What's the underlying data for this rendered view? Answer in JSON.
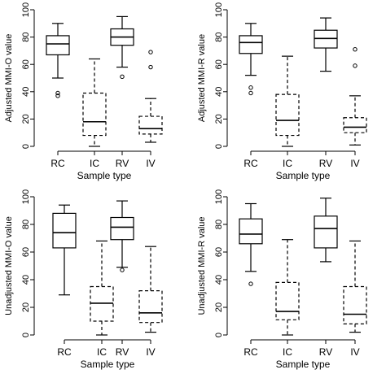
{
  "chart_data": [
    {
      "type": "box",
      "ylabel": "Adjusted MMI-O value",
      "xlabel": "Sample type",
      "ylim": [
        0,
        100
      ],
      "yticks": [
        0,
        20,
        40,
        60,
        80,
        100
      ],
      "categories": [
        "RC",
        "IC",
        "RV",
        "IV"
      ],
      "boxes": [
        {
          "category": "RC",
          "style": "solid",
          "whisker_low": 50,
          "q1": 67,
          "median": 75,
          "q3": 81,
          "whisker_high": 90,
          "outliers": [
            37,
            39
          ]
        },
        {
          "category": "IC",
          "style": "dashed",
          "whisker_low": 0,
          "q1": 8,
          "median": 18,
          "q3": 39,
          "whisker_high": 64,
          "outliers": []
        },
        {
          "category": "RV",
          "style": "solid",
          "whisker_low": 58,
          "q1": 74,
          "median": 80,
          "q3": 86,
          "whisker_high": 95,
          "outliers": [
            51
          ]
        },
        {
          "category": "IV",
          "style": "dashed",
          "whisker_low": 3,
          "q1": 9,
          "median": 13,
          "q3": 22,
          "whisker_high": 35,
          "outliers": [
            58,
            69
          ]
        }
      ]
    },
    {
      "type": "box",
      "ylabel": "Adjusted MMI-R value",
      "xlabel": "Sample type",
      "ylim": [
        0,
        100
      ],
      "yticks": [
        0,
        20,
        40,
        60,
        80,
        100
      ],
      "categories": [
        "RC",
        "IC",
        "RV",
        "IV"
      ],
      "boxes": [
        {
          "category": "RC",
          "style": "solid",
          "whisker_low": 52,
          "q1": 68,
          "median": 76,
          "q3": 81,
          "whisker_high": 90,
          "outliers": [
            39,
            43
          ]
        },
        {
          "category": "IC",
          "style": "dashed",
          "whisker_low": 0,
          "q1": 8,
          "median": 19,
          "q3": 38,
          "whisker_high": 66,
          "outliers": []
        },
        {
          "category": "RV",
          "style": "solid",
          "whisker_low": 55,
          "q1": 72,
          "median": 79,
          "q3": 85,
          "whisker_high": 94,
          "outliers": []
        },
        {
          "category": "IV",
          "style": "dashed",
          "whisker_low": 1,
          "q1": 10,
          "median": 14,
          "q3": 21,
          "whisker_high": 37,
          "outliers": [
            59,
            71
          ]
        }
      ]
    },
    {
      "type": "box",
      "ylabel": "Unadjusted MMI-O value",
      "xlabel": "Sample type",
      "ylim": [
        0,
        100
      ],
      "yticks": [
        0,
        20,
        40,
        60,
        80,
        100
      ],
      "categories": [
        "RC",
        "IC",
        "RV",
        "IV"
      ],
      "boxes": [
        {
          "category": "RC",
          "style": "solid",
          "whisker_low": 29,
          "q1": 63,
          "median": 74,
          "q3": 88,
          "whisker_high": 94,
          "outliers": []
        },
        {
          "category": "IC",
          "style": "dashed",
          "whisker_low": 0,
          "q1": 10,
          "median": 23,
          "q3": 35,
          "whisker_high": 68,
          "outliers": []
        },
        {
          "category": "RV",
          "style": "solid",
          "whisker_low": 49,
          "q1": 69,
          "median": 78,
          "q3": 85,
          "whisker_high": 97,
          "outliers": [
            47
          ]
        },
        {
          "category": "IV",
          "style": "dashed",
          "whisker_low": 2,
          "q1": 9,
          "median": 16,
          "q3": 32,
          "whisker_high": 64,
          "outliers": []
        }
      ]
    },
    {
      "type": "box",
      "ylabel": "Unadjusted MMI-R value",
      "xlabel": "Sample type",
      "ylim": [
        0,
        100
      ],
      "yticks": [
        0,
        20,
        40,
        60,
        80,
        100
      ],
      "categories": [
        "RC",
        "IC",
        "RV",
        "IV"
      ],
      "boxes": [
        {
          "category": "RC",
          "style": "solid",
          "whisker_low": 46,
          "q1": 66,
          "median": 73,
          "q3": 84,
          "whisker_high": 95,
          "outliers": [
            37
          ]
        },
        {
          "category": "IC",
          "style": "dashed",
          "whisker_low": 0,
          "q1": 11,
          "median": 17,
          "q3": 38,
          "whisker_high": 69,
          "outliers": []
        },
        {
          "category": "RV",
          "style": "solid",
          "whisker_low": 53,
          "q1": 63,
          "median": 77,
          "q3": 86,
          "whisker_high": 99,
          "outliers": []
        },
        {
          "category": "IV",
          "style": "dashed",
          "whisker_low": 2,
          "q1": 8,
          "median": 15,
          "q3": 35,
          "whisker_high": 68,
          "outliers": []
        }
      ]
    }
  ]
}
